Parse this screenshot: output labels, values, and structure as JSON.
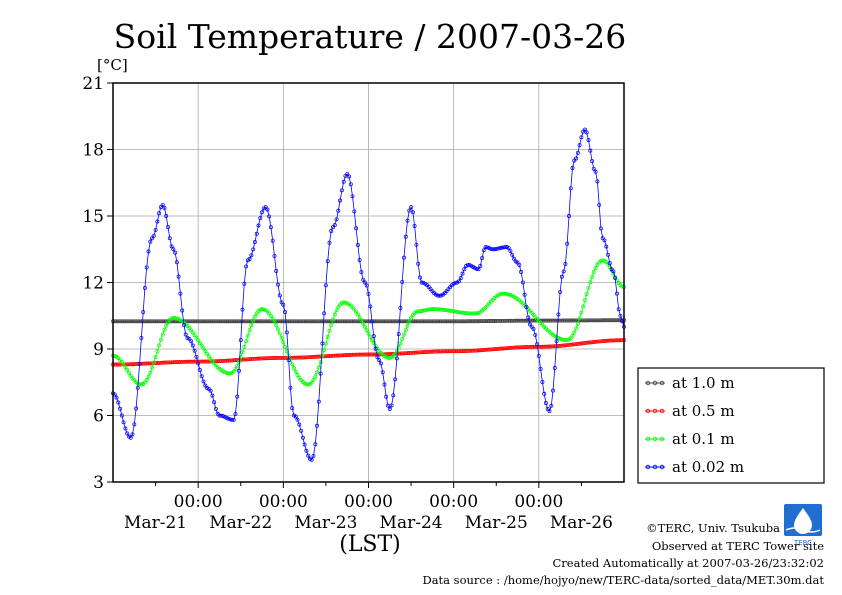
{
  "chart_data": {
    "type": "line",
    "title": "Soil Temperature / 2007-03-26",
    "ylabel": "[°C]",
    "xlabel": "(LST)",
    "ylim": [
      3,
      21
    ],
    "yticks": [
      3,
      6,
      9,
      12,
      15,
      18,
      21
    ],
    "xlim": [
      0,
      144
    ],
    "time_ticks": [
      "00:00",
      "00:00",
      "00:00",
      "00:00",
      "00:00"
    ],
    "date_ticks": [
      "Mar-21",
      "Mar-22",
      "Mar-23",
      "Mar-24",
      "Mar-25",
      "Mar-26"
    ],
    "grid": true,
    "legend": "right",
    "series": [
      {
        "name": "at 1.0 m",
        "color": "#404040",
        "x": [
          0,
          24,
          48,
          72,
          96,
          120,
          144
        ],
        "y": [
          10.25,
          10.25,
          10.25,
          10.25,
          10.25,
          10.28,
          10.3
        ]
      },
      {
        "name": "at 0.5 m",
        "color": "#ff0000",
        "x": [
          0,
          24,
          48,
          72,
          96,
          120,
          144
        ],
        "y": [
          8.3,
          8.43,
          8.6,
          8.75,
          8.9,
          9.1,
          9.4
        ]
      },
      {
        "name": "at 0.1 m",
        "color": "#00ff00",
        "x": [
          0,
          8,
          17,
          33,
          42,
          55,
          65,
          78,
          86,
          90,
          102,
          110,
          128,
          138,
          144
        ],
        "y": [
          8.7,
          7.4,
          10.4,
          7.9,
          10.8,
          7.4,
          11.1,
          8.6,
          10.7,
          10.8,
          10.6,
          11.5,
          9.4,
          13.0,
          11.8
        ]
      },
      {
        "name": "at 0.02 m",
        "color": "#0000ff",
        "x": [
          0,
          5,
          11,
          14,
          17,
          21,
          27,
          30,
          34,
          38,
          43,
          48,
          51,
          56,
          62,
          66,
          71,
          75,
          78,
          84,
          87,
          92,
          97,
          100,
          103,
          105,
          107,
          111,
          114,
          118,
          123,
          127,
          130,
          133,
          136,
          138,
          141,
          143,
          144
        ],
        "y": [
          7.0,
          5.0,
          14.0,
          15.5,
          13.5,
          9.5,
          7.2,
          6.0,
          5.8,
          13.0,
          15.4,
          11.0,
          6.0,
          4.0,
          14.5,
          16.9,
          12.0,
          8.5,
          6.3,
          15.4,
          12.0,
          11.4,
          12.0,
          12.8,
          12.6,
          13.6,
          13.5,
          13.6,
          12.9,
          10.0,
          6.2,
          12.5,
          17.5,
          18.9,
          17.0,
          14.0,
          12.5,
          10.5,
          10.0
        ]
      }
    ]
  },
  "footer": {
    "copyright": "©TERC, Univ. Tsukuba",
    "site": "Observed at TERC Tower site",
    "created": "Created Automatically at 2007-03-26/23:32:02",
    "source": "Data source : /home/hojyo/new/TERC-data/sorted_data/MET.30m.dat",
    "logo_text": "TERC"
  }
}
